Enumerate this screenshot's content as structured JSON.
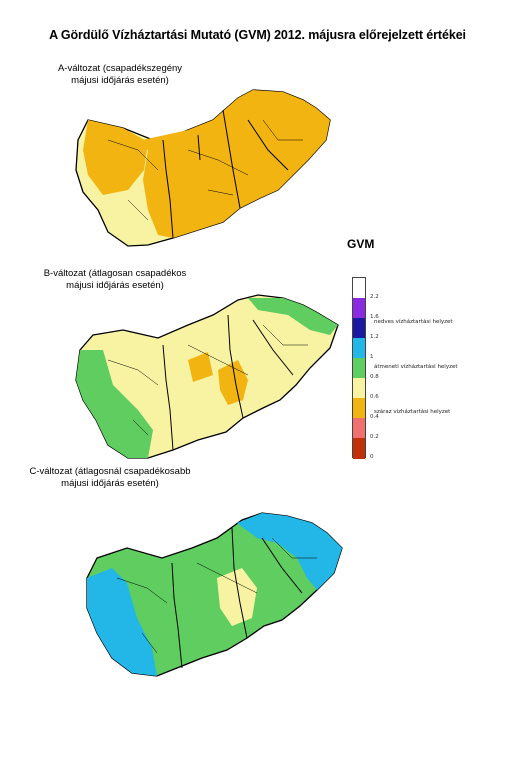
{
  "title": "A Gördülő Vízháztartási Mutató (GVM) 2012. májusra előrejelzett értékei",
  "maps": [
    {
      "caption_line1": "A-változat (csapadékszegény",
      "caption_line2": "májusi időjárás esetén)"
    },
    {
      "caption_line1": "B-változat (átlagosan csapadékos",
      "caption_line2": "májusi időjárás esetén)"
    },
    {
      "caption_line1": "C-változat (átlagosnál csapadékosabb",
      "caption_line2": "májusi időjárás esetén)"
    }
  ],
  "legend": {
    "title": "GVM",
    "ticks": [
      "2.2",
      "1.6",
      "1.2",
      "1",
      "0.8",
      "0.6",
      "0.4",
      "0.2",
      "0"
    ],
    "zones": [
      "nedves vízháztartási helyzet",
      "átmeneti vízháztartási helyzet",
      "száraz vízháztartási helyzet"
    ],
    "colors": [
      "#ffffff",
      "#8a2be2",
      "#1a1aa0",
      "#22b7e6",
      "#5fcd5f",
      "#f7f3a2",
      "#f2b410",
      "#f07070",
      "#c0300a"
    ]
  },
  "colors": {
    "wet": "#22b7e6",
    "transition": "#5fcd5f",
    "light_dry": "#f7f3a2",
    "dry": "#f2b410"
  }
}
